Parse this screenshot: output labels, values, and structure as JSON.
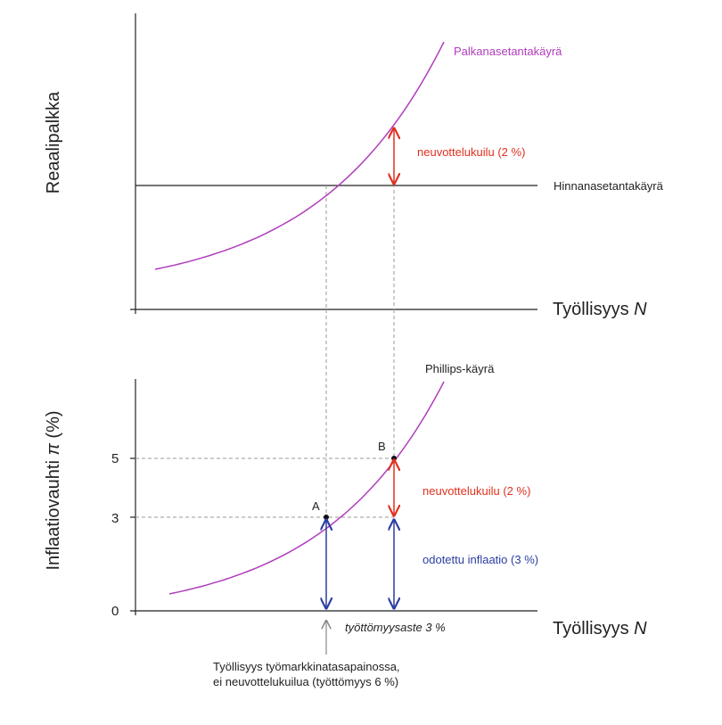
{
  "chart_data": [
    {
      "type": "line",
      "panel": "top",
      "ylabel": "Reaalipalkka",
      "xlabel": "Työllisyys N",
      "series": [
        {
          "name": "Palkanasetantakäyrä",
          "color": "#b03dbb",
          "kind": "convex-curve"
        },
        {
          "name": "Hinnanasetantakäyrä",
          "color": "#222222",
          "kind": "horizontal-line"
        }
      ],
      "annotation": {
        "text": "neuvottelukuilu (2 %)",
        "color": "#e0301e"
      }
    },
    {
      "type": "line",
      "panel": "bottom",
      "ylabel": "Inflaatiovauhti π (%)",
      "xlabel": "Työllisyys N",
      "yticks": [
        "0",
        "3",
        "5"
      ],
      "ylim": [
        0,
        5
      ],
      "series": [
        {
          "name": "Phillips-käyrä",
          "color": "#b03dbb",
          "kind": "convex-curve"
        }
      ],
      "points": [
        {
          "label": "A",
          "y": 3
        },
        {
          "label": "B",
          "y": 5
        }
      ],
      "annotations": [
        {
          "text": "neuvottelukuilu (2 %)",
          "color": "#e0301e"
        },
        {
          "text": "odotettu inflaatio (3 %)",
          "color": "#2b3ea0"
        },
        {
          "text": "työttömyysaste 3 %",
          "style": "italic"
        }
      ]
    }
  ],
  "top": {
    "ylabel": "Reaalipalkka",
    "xlabel_main": "Työllisyys ",
    "xlabel_var": "N",
    "wage_curve": "Palkanasetantakäyrä",
    "price_curve": "Hinnanasetantakäyrä",
    "gap": "neuvottelukuilu (2 %)"
  },
  "bottom": {
    "ylabel_main": "Inflaatiovauhti ",
    "ylabel_var": "π",
    "ylabel_unit": " (%)",
    "xlabel_main": "Työllisyys ",
    "xlabel_var": "N",
    "phillips": "Phillips-käyrä",
    "tick_0": "0",
    "tick_3": "3",
    "tick_5": "5",
    "point_a": "A",
    "point_b": "B",
    "gap": "neuvottelukuilu (2 %)",
    "expected": "odotettu inflaatio (3 %)",
    "unemp_rate": "työttömyysaste 3 %",
    "note_line1": "Työllisyys työmarkkinatasapainossa,",
    "note_line2": "ei neuvottelukuilua (työttömyys 6 %)"
  },
  "colors": {
    "purple": "#b03dbb",
    "red": "#e0301e",
    "blue": "#2b3ea0",
    "axis": "#222222",
    "dash": "#999999"
  }
}
